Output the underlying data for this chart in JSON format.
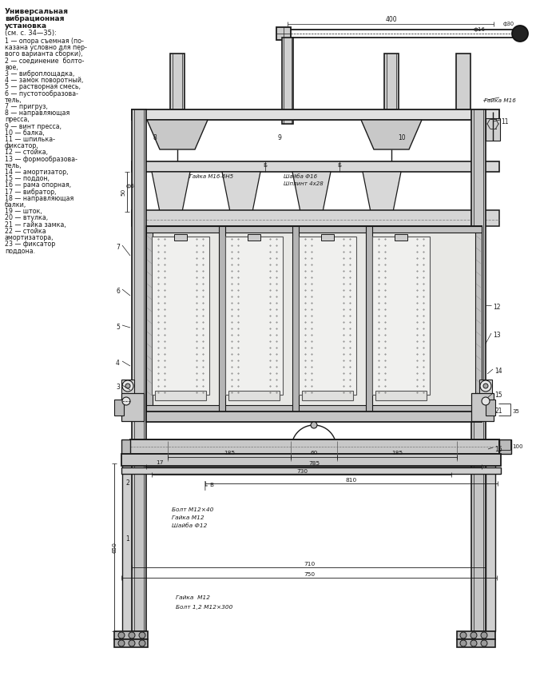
{
  "bg_color": "#ffffff",
  "lc": "#1a1a1a",
  "legend_title_lines": [
    "Универсальная",
    "вибрационная",
    "установка"
  ],
  "legend_subtitle": "(см. с. 34—35):",
  "legend_items": [
    "1 — опора съемная (по-",
    "казана условно для пер-",
    "вого варианта сборки),",
    "2 — соединение  болто-",
    "вое,",
    "3 — виброплощадка,",
    "4 — замок поворотный,",
    "5 — растворная смесь,",
    "6 — пустотообразова-",
    "тель,",
    "7 — пригруз,",
    "8 — направляющая",
    "пресса,",
    "9 — винт пресса,",
    "10 — балка,",
    "11 — шпилька-",
    "фиксатор,",
    "12 — стойка,",
    "13 — формообразова-",
    "тель,",
    "14 — амортизатор,",
    "15 — поддон,",
    "16 — рама опорная,",
    "17 — вибратор,",
    "18 — направляющая",
    "балки,",
    "19 — шток,",
    "20 — втулка,",
    "21 — гайка замка,",
    "22 — стойка",
    "амортизатора,",
    "23 — фиксатор",
    "поддона."
  ],
  "notes": {
    "gayka_m16_tr": "Гайка М16",
    "gayka_m16_6n5": "Гайка М16-6Н5",
    "shaiba_f16": "Шайба Ф16",
    "shplint_4x28": "Шплинт 4х28",
    "bolt_m12_40": "Болт М12×40",
    "gayka_m12": "Гайка М12",
    "shaiba_f12": "Шайба Ф12",
    "gayka_m12_b": "Гайка  М12",
    "bolt_1_2": "Болт 1,2 М12×300",
    "d400": "400",
    "df16": "ф16",
    "df30": "ф30",
    "df6": "ф6",
    "d50": "50",
    "d185a": "185",
    "d60": "60",
    "d185b": "185",
    "d785": "785",
    "d730": "730",
    "dB": "В",
    "d810": "810",
    "d710": "710",
    "d750": "750",
    "d650": "650",
    "d100": "100",
    "d35": "35",
    "n8": "8",
    "n9": "9",
    "n10": "10",
    "n11": "11",
    "n12": "12",
    "n13": "13",
    "n14": "14",
    "n15": "15",
    "n16": "16",
    "n17": "17",
    "n21": "21",
    "n7": "7",
    "n6": "6",
    "n5": "5",
    "n4": "4",
    "n3": "3",
    "n2": "2",
    "n1": "1",
    "nB": "Б",
    "nB2": "Б"
  }
}
